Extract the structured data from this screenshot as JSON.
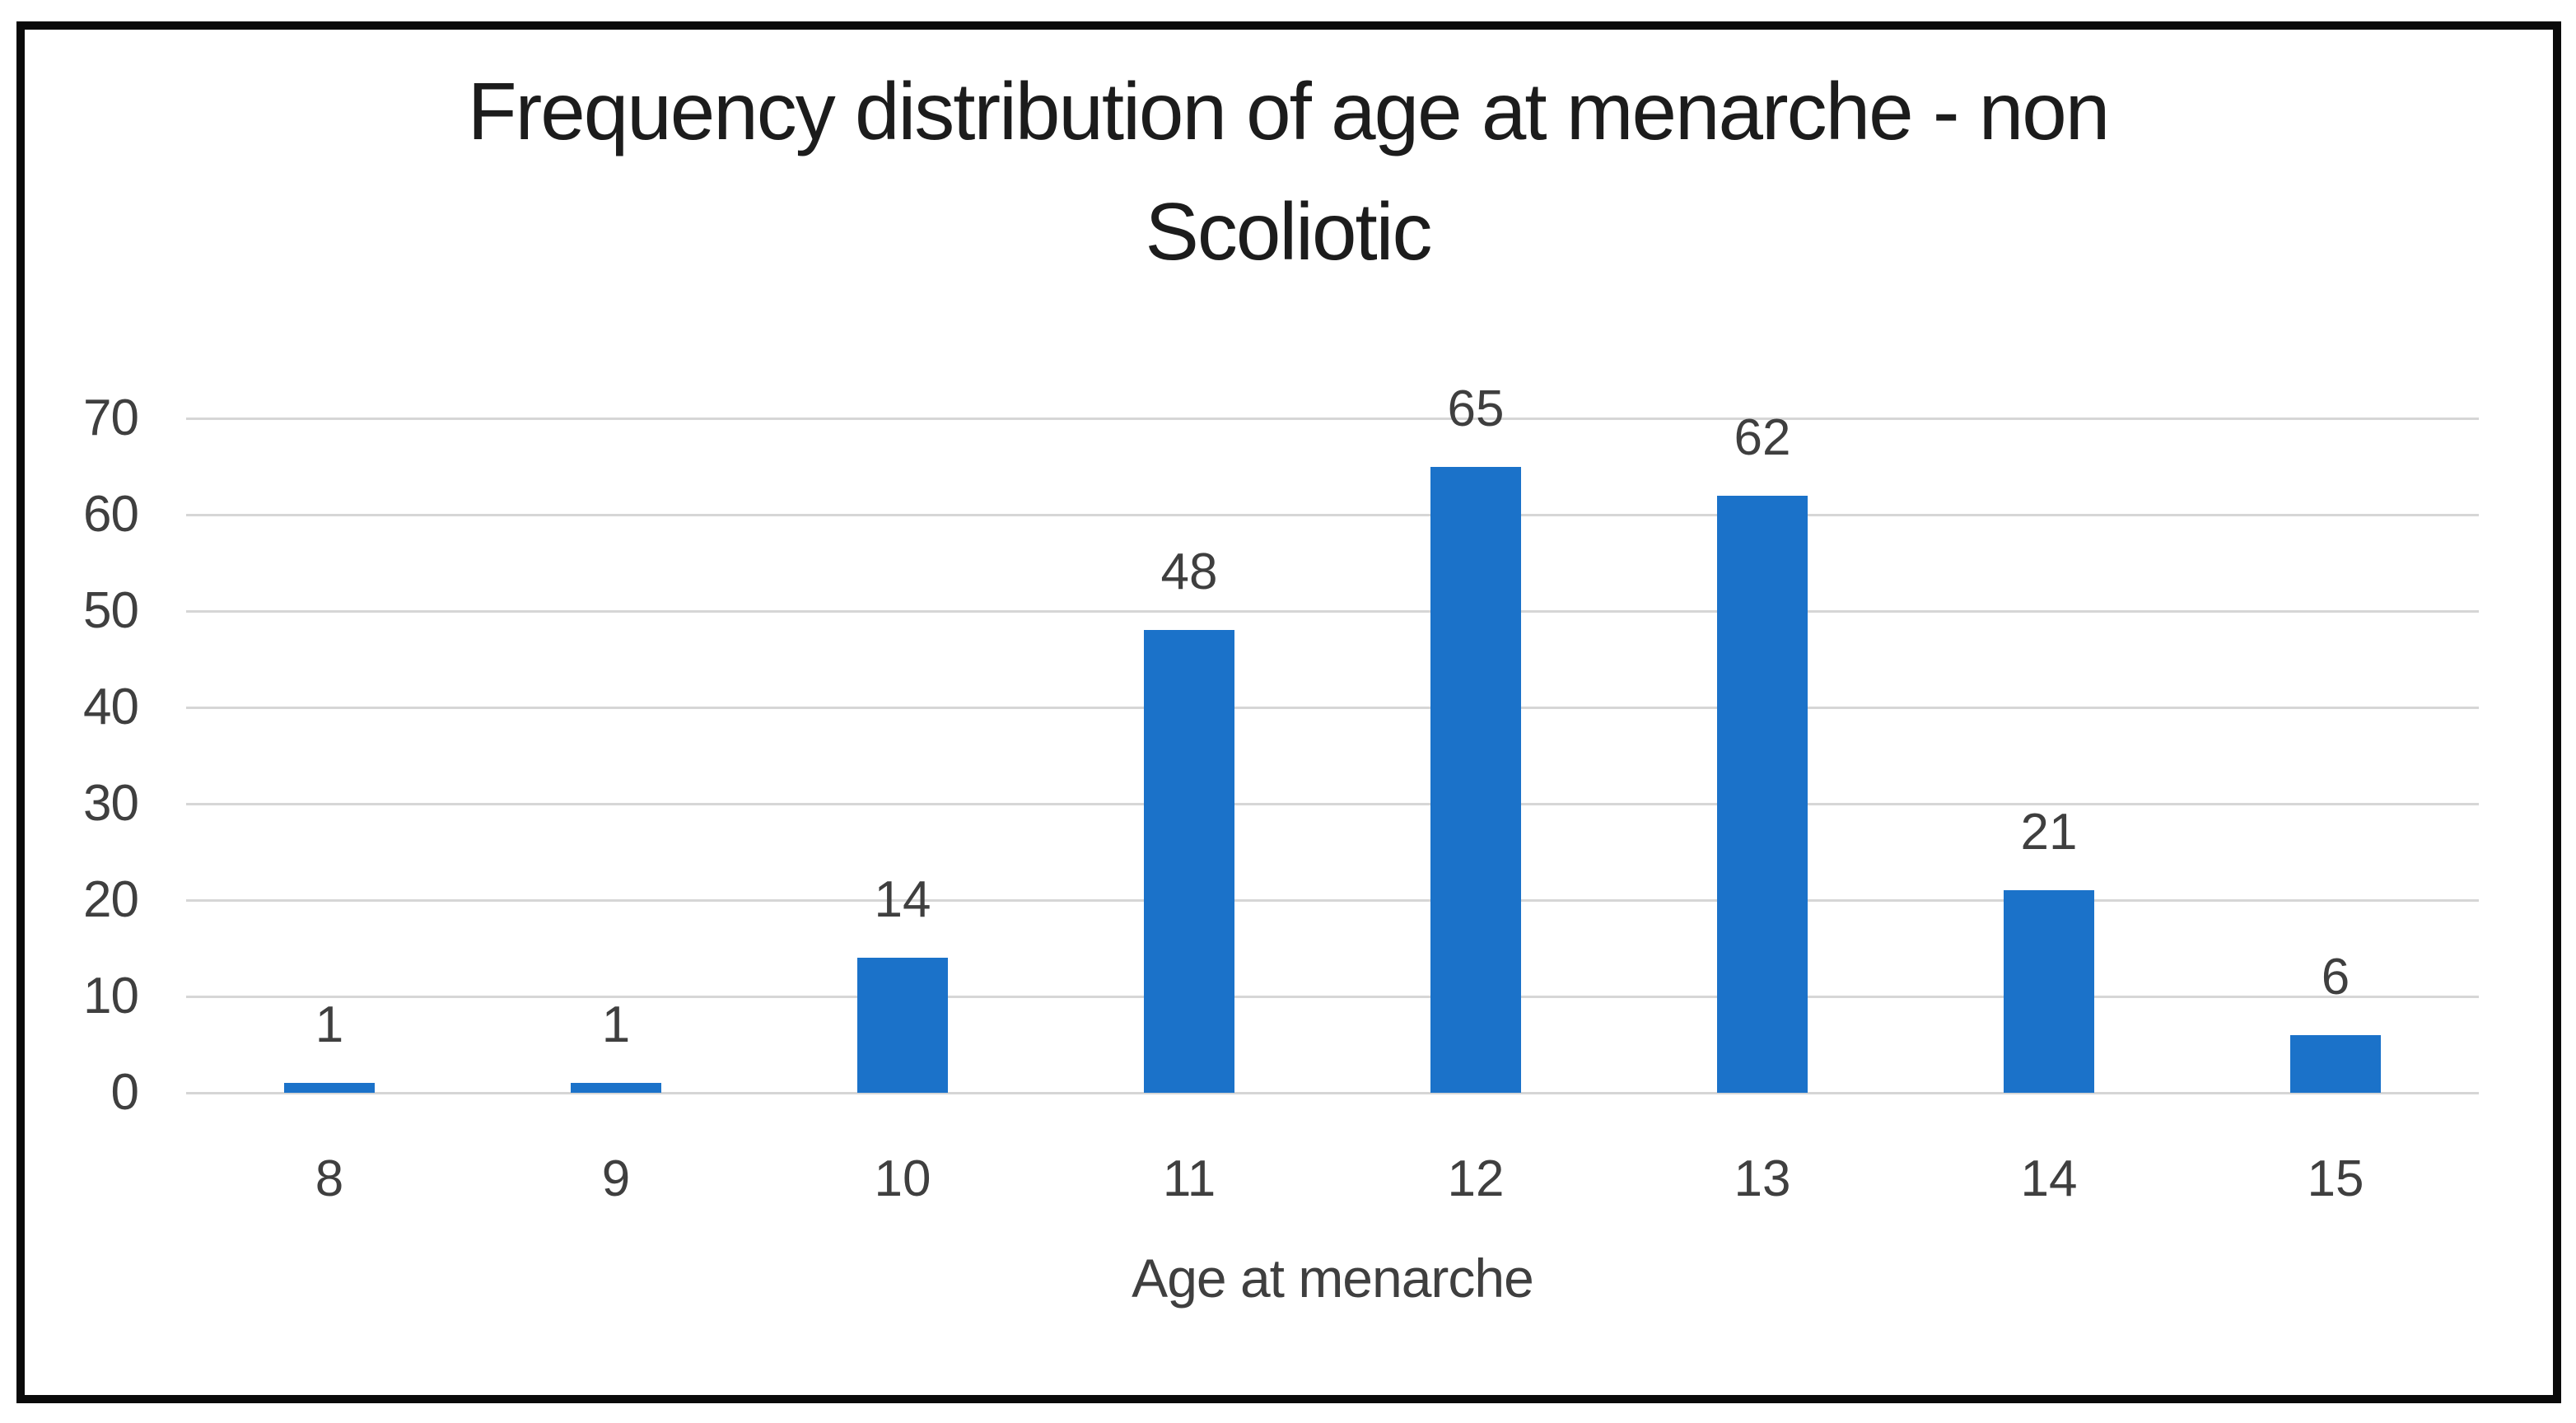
{
  "header": {
    "title_lines": [
      "Frequency distribution of age at menarche - non",
      "Scoliotic"
    ]
  },
  "chart_data": {
    "type": "bar",
    "title": "Frequency distribution of age at menarche - non Scoliotic",
    "categories": [
      "8",
      "9",
      "10",
      "11",
      "12",
      "13",
      "14",
      "15"
    ],
    "values": [
      1,
      1,
      14,
      48,
      65,
      62,
      21,
      6
    ],
    "xlabel": "Age at menarche",
    "ylabel": "",
    "ylim": [
      0,
      70
    ],
    "yticks": [
      0,
      10,
      20,
      30,
      40,
      50,
      60,
      70
    ],
    "grid": true,
    "legend": false,
    "data_labels": true,
    "colors": {
      "bar": "#1b72c9",
      "gridline": "#d6d6d6",
      "tick_text": "#3f3f3f",
      "title_text": "#1c1c1c",
      "frame_border": "#0a0a0a",
      "background": "#ffffff"
    }
  }
}
